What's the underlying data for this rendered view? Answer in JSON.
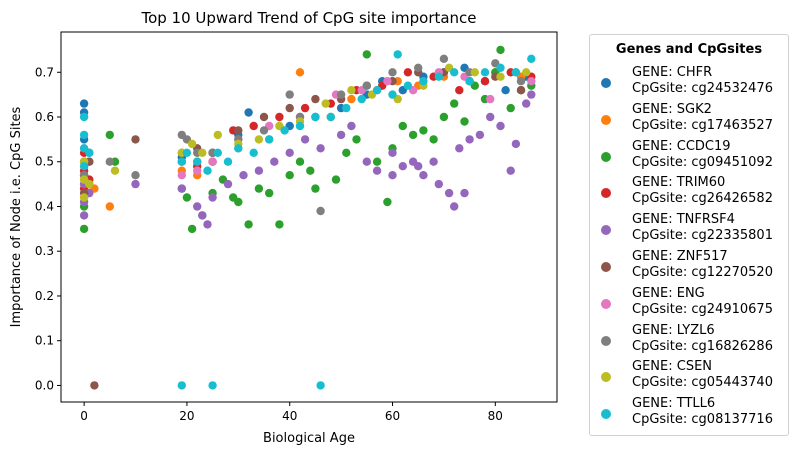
{
  "chart_data": {
    "type": "scatter",
    "title": "Top 10 Upward Trend of CpG site importance",
    "xlabel": "Biological Age",
    "ylabel": "Importance of Node i.e. CpG Sites",
    "xlim": [
      -4.5,
      92
    ],
    "ylim": [
      -0.037,
      0.79
    ],
    "x_ticks": [
      0,
      20,
      40,
      60,
      80
    ],
    "y_ticks": [
      0.0,
      0.1,
      0.2,
      0.3,
      0.4,
      0.5,
      0.6,
      0.7
    ],
    "grid": false,
    "legend_title": "Genes and CpGsites",
    "legend_placement": "outside-right",
    "series": [
      {
        "name": "GENE: CHFR\nCpGsite: cg24532476",
        "color": "#1f77b4",
        "points": [
          [
            0,
            0.63
          ],
          [
            0,
            0.61
          ],
          [
            0,
            0.55
          ],
          [
            1,
            0.52
          ],
          [
            19,
            0.51
          ],
          [
            22,
            0.5
          ],
          [
            25,
            0.52
          ],
          [
            30,
            0.56
          ],
          [
            32,
            0.61
          ],
          [
            40,
            0.58
          ],
          [
            45,
            0.6
          ],
          [
            50,
            0.62
          ],
          [
            55,
            0.65
          ],
          [
            58,
            0.68
          ],
          [
            62,
            0.66
          ],
          [
            66,
            0.69
          ],
          [
            70,
            0.7
          ],
          [
            74,
            0.71
          ],
          [
            78,
            0.68
          ],
          [
            82,
            0.66
          ],
          [
            86,
            0.69
          ]
        ]
      },
      {
        "name": "GENE: SGK2\nCpGsite: cg17463527",
        "color": "#ff7f0e",
        "points": [
          [
            0,
            0.45
          ],
          [
            0,
            0.42
          ],
          [
            0,
            0.5
          ],
          [
            5,
            0.4
          ],
          [
            2,
            0.44
          ],
          [
            19,
            0.48
          ],
          [
            22,
            0.47
          ],
          [
            25,
            0.5
          ],
          [
            30,
            0.53
          ],
          [
            36,
            0.55
          ],
          [
            42,
            0.7
          ],
          [
            48,
            0.6
          ],
          [
            52,
            0.64
          ],
          [
            57,
            0.66
          ],
          [
            61,
            0.68
          ],
          [
            65,
            0.67
          ],
          [
            70,
            0.69
          ],
          [
            75,
            0.68
          ],
          [
            80,
            0.7
          ],
          [
            85,
            0.69
          ]
        ]
      },
      {
        "name": "GENE: CCDC19\nCpGsite: cg09451092",
        "color": "#2ca02c",
        "points": [
          [
            0,
            0.35
          ],
          [
            0,
            0.4
          ],
          [
            0,
            0.47
          ],
          [
            1,
            0.5
          ],
          [
            5,
            0.56
          ],
          [
            6,
            0.5
          ],
          [
            19,
            0.44
          ],
          [
            20,
            0.42
          ],
          [
            21,
            0.35
          ],
          [
            23,
            0.38
          ],
          [
            25,
            0.43
          ],
          [
            27,
            0.46
          ],
          [
            29,
            0.42
          ],
          [
            30,
            0.41
          ],
          [
            32,
            0.36
          ],
          [
            34,
            0.44
          ],
          [
            36,
            0.43
          ],
          [
            38,
            0.36
          ],
          [
            40,
            0.47
          ],
          [
            42,
            0.5
          ],
          [
            44,
            0.48
          ],
          [
            45,
            0.44
          ],
          [
            49,
            0.46
          ],
          [
            51,
            0.52
          ],
          [
            53,
            0.55
          ],
          [
            55,
            0.74
          ],
          [
            57,
            0.5
          ],
          [
            59,
            0.41
          ],
          [
            60,
            0.53
          ],
          [
            62,
            0.58
          ],
          [
            64,
            0.56
          ],
          [
            66,
            0.57
          ],
          [
            68,
            0.55
          ],
          [
            70,
            0.6
          ],
          [
            72,
            0.63
          ],
          [
            74,
            0.59
          ],
          [
            76,
            0.67
          ],
          [
            78,
            0.64
          ],
          [
            80,
            0.7
          ],
          [
            81,
            0.75
          ],
          [
            83,
            0.62
          ],
          [
            85,
            0.66
          ],
          [
            87,
            0.67
          ]
        ]
      },
      {
        "name": "GENE: TRIM60\nCpGsite: cg26426582",
        "color": "#d62728",
        "points": [
          [
            0,
            0.48
          ],
          [
            0,
            0.52
          ],
          [
            0,
            0.44
          ],
          [
            1,
            0.46
          ],
          [
            19,
            0.5
          ],
          [
            22,
            0.49
          ],
          [
            25,
            0.52
          ],
          [
            29,
            0.57
          ],
          [
            33,
            0.58
          ],
          [
            38,
            0.6
          ],
          [
            43,
            0.62
          ],
          [
            48,
            0.63
          ],
          [
            53,
            0.66
          ],
          [
            58,
            0.67
          ],
          [
            63,
            0.7
          ],
          [
            68,
            0.69
          ],
          [
            73,
            0.66
          ],
          [
            78,
            0.68
          ],
          [
            83,
            0.7
          ],
          [
            87,
            0.69
          ]
        ]
      },
      {
        "name": "GENE: TNFRSF4\nCpGsite: cg22335801",
        "color": "#9467bd",
        "points": [
          [
            0,
            0.38
          ],
          [
            0,
            0.41
          ],
          [
            0,
            0.45
          ],
          [
            1,
            0.43
          ],
          [
            10,
            0.45
          ],
          [
            19,
            0.44
          ],
          [
            22,
            0.4
          ],
          [
            23,
            0.38
          ],
          [
            24,
            0.36
          ],
          [
            25,
            0.42
          ],
          [
            28,
            0.45
          ],
          [
            31,
            0.47
          ],
          [
            34,
            0.48
          ],
          [
            37,
            0.5
          ],
          [
            40,
            0.52
          ],
          [
            43,
            0.55
          ],
          [
            46,
            0.53
          ],
          [
            50,
            0.56
          ],
          [
            52,
            0.58
          ],
          [
            55,
            0.5
          ],
          [
            57,
            0.48
          ],
          [
            60,
            0.52
          ],
          [
            62,
            0.49
          ],
          [
            64,
            0.5
          ],
          [
            66,
            0.47
          ],
          [
            68,
            0.5
          ],
          [
            69,
            0.45
          ],
          [
            71,
            0.43
          ],
          [
            72,
            0.4
          ],
          [
            73,
            0.53
          ],
          [
            74,
            0.43
          ],
          [
            75,
            0.55
          ],
          [
            77,
            0.56
          ],
          [
            79,
            0.6
          ],
          [
            81,
            0.58
          ],
          [
            83,
            0.48
          ],
          [
            84,
            0.54
          ],
          [
            86,
            0.63
          ],
          [
            87,
            0.65
          ],
          [
            65,
            0.49
          ],
          [
            60,
            0.47
          ]
        ]
      },
      {
        "name": "GENE: ZNF517\nCpGsite: cg12270520",
        "color": "#8c564b",
        "points": [
          [
            2,
            0.0
          ],
          [
            0,
            0.47
          ],
          [
            0,
            0.43
          ],
          [
            1,
            0.5
          ],
          [
            10,
            0.55
          ],
          [
            19,
            0.52
          ],
          [
            22,
            0.53
          ],
          [
            25,
            0.5
          ],
          [
            30,
            0.57
          ],
          [
            35,
            0.6
          ],
          [
            40,
            0.62
          ],
          [
            45,
            0.64
          ],
          [
            50,
            0.64
          ],
          [
            55,
            0.67
          ],
          [
            60,
            0.68
          ],
          [
            65,
            0.7
          ],
          [
            70,
            0.7
          ],
          [
            75,
            0.68
          ],
          [
            80,
            0.69
          ],
          [
            85,
            0.66
          ]
        ]
      },
      {
        "name": "GENE: ENG\nCpGsite: cg24910675",
        "color": "#e377c2",
        "points": [
          [
            0,
            0.46
          ],
          [
            0,
            0.5
          ],
          [
            0,
            0.53
          ],
          [
            19,
            0.47
          ],
          [
            22,
            0.48
          ],
          [
            25,
            0.5
          ],
          [
            30,
            0.55
          ],
          [
            36,
            0.58
          ],
          [
            42,
            0.6
          ],
          [
            49,
            0.65
          ],
          [
            54,
            0.66
          ],
          [
            59,
            0.68
          ],
          [
            64,
            0.66
          ],
          [
            69,
            0.7
          ],
          [
            74,
            0.69
          ],
          [
            79,
            0.64
          ],
          [
            84,
            0.7
          ],
          [
            87,
            0.68
          ]
        ]
      },
      {
        "name": "GENE: LYZL6\nCpGsite: cg16826286",
        "color": "#7f7f7f",
        "points": [
          [
            0,
            0.47
          ],
          [
            0,
            0.5
          ],
          [
            1,
            0.45
          ],
          [
            5,
            0.5
          ],
          [
            10,
            0.47
          ],
          [
            19,
            0.56
          ],
          [
            20,
            0.55
          ],
          [
            22,
            0.52
          ],
          [
            25,
            0.52
          ],
          [
            30,
            0.55
          ],
          [
            35,
            0.57
          ],
          [
            40,
            0.65
          ],
          [
            42,
            0.6
          ],
          [
            46,
            0.39
          ],
          [
            50,
            0.65
          ],
          [
            55,
            0.67
          ],
          [
            60,
            0.7
          ],
          [
            65,
            0.71
          ],
          [
            70,
            0.73
          ],
          [
            75,
            0.7
          ],
          [
            80,
            0.72
          ],
          [
            85,
            0.68
          ]
        ]
      },
      {
        "name": "GENE: CSEN\nCpGsite: cg05443740",
        "color": "#bcbd22",
        "points": [
          [
            0,
            0.42
          ],
          [
            0,
            0.46
          ],
          [
            0,
            0.5
          ],
          [
            1,
            0.45
          ],
          [
            6,
            0.48
          ],
          [
            19,
            0.52
          ],
          [
            21,
            0.54
          ],
          [
            23,
            0.52
          ],
          [
            26,
            0.56
          ],
          [
            30,
            0.54
          ],
          [
            34,
            0.55
          ],
          [
            38,
            0.58
          ],
          [
            42,
            0.59
          ],
          [
            47,
            0.63
          ],
          [
            52,
            0.66
          ],
          [
            56,
            0.65
          ],
          [
            61,
            0.64
          ],
          [
            66,
            0.67
          ],
          [
            71,
            0.71
          ],
          [
            76,
            0.7
          ],
          [
            81,
            0.69
          ],
          [
            86,
            0.7
          ]
        ]
      },
      {
        "name": "GENE: TTLL6\nCpGsite: cg08137716",
        "color": "#17becf",
        "points": [
          [
            19,
            0.0
          ],
          [
            25,
            0.0
          ],
          [
            46,
            0.0
          ],
          [
            0,
            0.6
          ],
          [
            0,
            0.56
          ],
          [
            0,
            0.53
          ],
          [
            0,
            0.49
          ],
          [
            1,
            0.52
          ],
          [
            19,
            0.5
          ],
          [
            20,
            0.52
          ],
          [
            22,
            0.5
          ],
          [
            24,
            0.48
          ],
          [
            26,
            0.52
          ],
          [
            28,
            0.5
          ],
          [
            30,
            0.53
          ],
          [
            33,
            0.52
          ],
          [
            36,
            0.55
          ],
          [
            39,
            0.57
          ],
          [
            42,
            0.58
          ],
          [
            45,
            0.6
          ],
          [
            48,
            0.6
          ],
          [
            51,
            0.62
          ],
          [
            54,
            0.64
          ],
          [
            57,
            0.66
          ],
          [
            60,
            0.65
          ],
          [
            61,
            0.74
          ],
          [
            63,
            0.67
          ],
          [
            66,
            0.68
          ],
          [
            69,
            0.69
          ],
          [
            72,
            0.7
          ],
          [
            75,
            0.68
          ],
          [
            78,
            0.7
          ],
          [
            81,
            0.71
          ],
          [
            84,
            0.7
          ],
          [
            87,
            0.73
          ]
        ]
      }
    ]
  }
}
